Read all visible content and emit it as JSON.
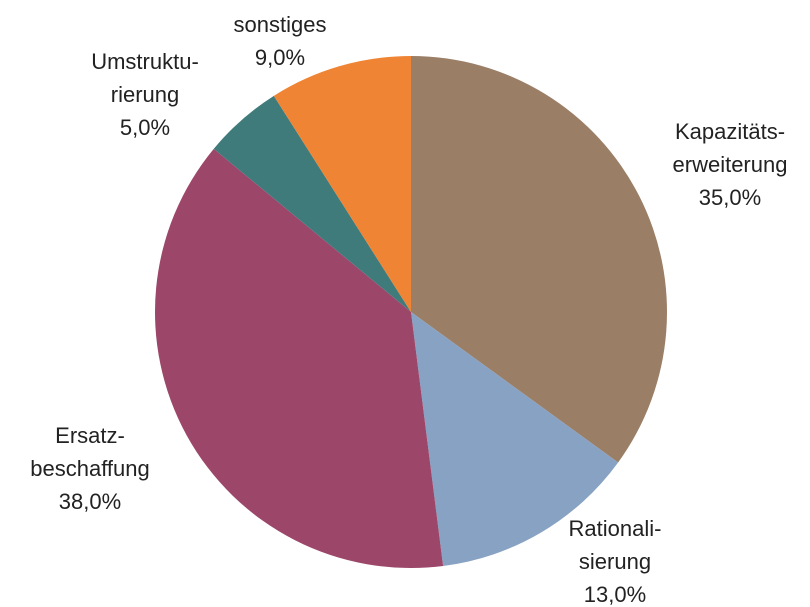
{
  "chart_data": {
    "type": "pie",
    "categories": [
      [
        "Kapazitäts-",
        "erweiterung"
      ],
      [
        "Rationali-",
        "sierung"
      ],
      [
        "Ersatz-",
        "beschaffung"
      ],
      [
        "Umstruktu-",
        "rierung"
      ],
      [
        "sonstiges"
      ]
    ],
    "values": [
      35,
      13,
      38,
      5,
      9
    ],
    "value_labels": [
      "35,0%",
      "13,0%",
      "38,0%",
      "5,0%",
      "9,0%"
    ],
    "colors": [
      "#9b7e66",
      "#87a2c3",
      "#9c4669",
      "#3f7b7b",
      "#ef8434"
    ]
  }
}
